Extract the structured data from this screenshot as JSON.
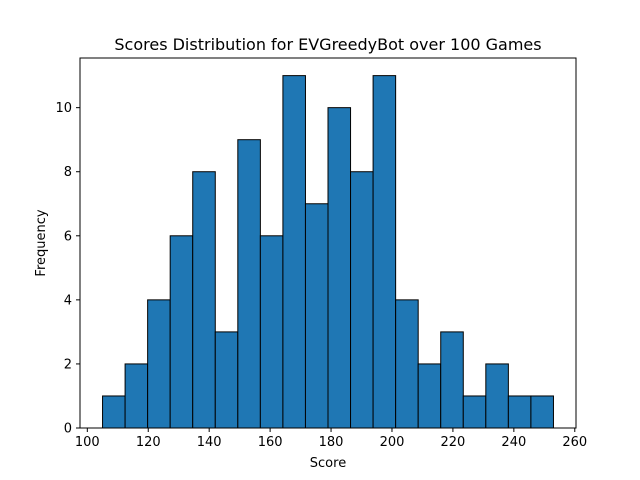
{
  "chart_data": {
    "type": "bar",
    "title": "Scores Distribution for EVGreedyBot over 100 Games",
    "xlabel": "Score",
    "ylabel": "Frequency",
    "bins": [
      {
        "start": 105.0,
        "end": 112.4,
        "count": 1
      },
      {
        "start": 112.4,
        "end": 119.8,
        "count": 2
      },
      {
        "start": 119.8,
        "end": 127.2,
        "count": 4
      },
      {
        "start": 127.2,
        "end": 134.6,
        "count": 6
      },
      {
        "start": 134.6,
        "end": 142.0,
        "count": 8
      },
      {
        "start": 142.0,
        "end": 149.4,
        "count": 3
      },
      {
        "start": 149.4,
        "end": 156.8,
        "count": 9
      },
      {
        "start": 156.8,
        "end": 164.2,
        "count": 6
      },
      {
        "start": 164.2,
        "end": 171.6,
        "count": 11
      },
      {
        "start": 171.6,
        "end": 179.0,
        "count": 7
      },
      {
        "start": 179.0,
        "end": 186.4,
        "count": 10
      },
      {
        "start": 186.4,
        "end": 193.8,
        "count": 8
      },
      {
        "start": 193.8,
        "end": 201.2,
        "count": 11
      },
      {
        "start": 201.2,
        "end": 208.6,
        "count": 4
      },
      {
        "start": 208.6,
        "end": 216.0,
        "count": 2
      },
      {
        "start": 216.0,
        "end": 223.4,
        "count": 3
      },
      {
        "start": 223.4,
        "end": 230.8,
        "count": 1
      },
      {
        "start": 230.8,
        "end": 238.2,
        "count": 2
      },
      {
        "start": 238.2,
        "end": 245.6,
        "count": 1
      },
      {
        "start": 245.6,
        "end": 253.0,
        "count": 1
      }
    ],
    "xlim": [
      97.6,
      260.4
    ],
    "ylim": [
      0,
      11.55
    ],
    "xticks": [
      100,
      120,
      140,
      160,
      180,
      200,
      220,
      240,
      260
    ],
    "yticks": [
      0,
      2,
      4,
      6,
      8,
      10
    ],
    "grid": false,
    "bar_color": "#1f77b4",
    "edge_color": "#000000"
  }
}
